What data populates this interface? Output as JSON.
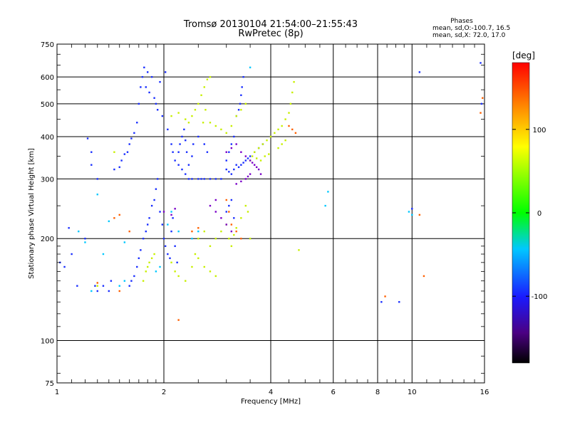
{
  "chart_data": {
    "type": "scatter",
    "title": "Tromsø 20130104 21:54:00–21:55:43",
    "subtitle": "RwPretec (8p)",
    "xlabel": "Frequency [MHz]",
    "ylabel": "Stationary phase Virtual Height [km]",
    "x_scale": "log",
    "y_scale": "log",
    "xlim": [
      1,
      16
    ],
    "ylim": [
      75,
      750
    ],
    "x_ticks": [
      1,
      2,
      4,
      6,
      8,
      10,
      16
    ],
    "y_ticks": [
      75,
      100,
      200,
      300,
      400,
      500,
      600,
      750
    ],
    "grid": true,
    "stats": {
      "heading": "Phases",
      "line1": "mean, sd,O:-100.7, 16.5",
      "line2": "mean, sd,X:  72.0, 17.0"
    },
    "colorbar": {
      "label": "[deg]",
      "range": [
        -180,
        180
      ],
      "ticks": [
        -100,
        0,
        100
      ],
      "tick_labels": [
        "-100",
        "0",
        "100"
      ]
    },
    "series": [
      {
        "points": [
          [
            1.02,
            170
          ],
          [
            1.05,
            165
          ],
          [
            1.08,
            215
          ],
          [
            1.1,
            180
          ],
          [
            1.14,
            145
          ],
          [
            1.2,
            200
          ],
          [
            1.25,
            330
          ],
          [
            1.3,
            300
          ],
          [
            1.35,
            145
          ],
          [
            1.4,
            140
          ],
          [
            1.42,
            150
          ],
          [
            1.45,
            320
          ],
          [
            1.5,
            325
          ],
          [
            1.52,
            340
          ],
          [
            1.55,
            355
          ],
          [
            1.58,
            360
          ],
          [
            1.6,
            380
          ],
          [
            1.62,
            395
          ],
          [
            1.65,
            410
          ],
          [
            1.68,
            440
          ],
          [
            1.7,
            500
          ],
          [
            1.72,
            560
          ],
          [
            1.74,
            600
          ],
          [
            1.76,
            640
          ],
          [
            1.78,
            560
          ],
          [
            1.8,
            620
          ],
          [
            1.82,
            540
          ],
          [
            1.85,
            600
          ],
          [
            1.88,
            520
          ],
          [
            1.9,
            500
          ],
          [
            1.92,
            480
          ],
          [
            1.95,
            580
          ],
          [
            1.98,
            460
          ],
          [
            2.02,
            620
          ],
          [
            2.05,
            420
          ],
          [
            2.1,
            380
          ],
          [
            2.12,
            360
          ],
          [
            2.15,
            340
          ],
          [
            2.2,
            330
          ],
          [
            2.25,
            320
          ],
          [
            2.3,
            310
          ],
          [
            2.35,
            300
          ],
          [
            2.4,
            300
          ],
          [
            2.5,
            300
          ],
          [
            2.55,
            300
          ],
          [
            2.6,
            300
          ],
          [
            2.7,
            300
          ],
          [
            2.8,
            300
          ],
          [
            2.9,
            300
          ],
          [
            1.6,
            145
          ],
          [
            1.62,
            150
          ],
          [
            1.65,
            155
          ],
          [
            1.68,
            165
          ],
          [
            1.7,
            175
          ],
          [
            1.72,
            185
          ],
          [
            1.75,
            200
          ],
          [
            1.78,
            210
          ],
          [
            1.8,
            220
          ],
          [
            1.82,
            230
          ],
          [
            1.85,
            250
          ],
          [
            1.88,
            260
          ],
          [
            1.9,
            280
          ],
          [
            1.92,
            300
          ],
          [
            1.95,
            240
          ],
          [
            1.98,
            220
          ],
          [
            2.0,
            200
          ],
          [
            2.02,
            190
          ],
          [
            2.05,
            180
          ],
          [
            2.08,
            175
          ],
          [
            2.1,
            210
          ],
          [
            2.12,
            230
          ],
          [
            2.15,
            190
          ],
          [
            2.18,
            170
          ],
          [
            2.2,
            360
          ],
          [
            2.22,
            380
          ],
          [
            2.25,
            400
          ],
          [
            2.28,
            420
          ],
          [
            2.3,
            390
          ],
          [
            2.32,
            360
          ],
          [
            2.35,
            330
          ],
          [
            2.4,
            350
          ],
          [
            2.42,
            380
          ],
          [
            2.5,
            400
          ],
          [
            2.6,
            380
          ],
          [
            2.65,
            360
          ],
          [
            3.0,
            240
          ],
          [
            3.05,
            250
          ],
          [
            3.1,
            260
          ],
          [
            3.15,
            230
          ],
          [
            3.2,
            460
          ],
          [
            3.25,
            480
          ],
          [
            3.28,
            500
          ],
          [
            3.3,
            530
          ],
          [
            3.32,
            560
          ],
          [
            3.35,
            600
          ],
          [
            3.0,
            320
          ],
          [
            3.05,
            315
          ],
          [
            3.1,
            310
          ],
          [
            3.15,
            320
          ],
          [
            3.2,
            330
          ],
          [
            3.25,
            325
          ],
          [
            3.3,
            330
          ],
          [
            3.35,
            335
          ],
          [
            3.4,
            340
          ],
          [
            3.45,
            345
          ],
          [
            3.5,
            350
          ],
          [
            3.6,
            360
          ],
          [
            3.7,
            370
          ],
          [
            3.8,
            380
          ],
          [
            3.0,
            340
          ],
          [
            3.05,
            360
          ],
          [
            3.1,
            380
          ],
          [
            3.15,
            400
          ],
          [
            8.2,
            130
          ],
          [
            9.2,
            130
          ],
          [
            10.5,
            620
          ],
          [
            10.0,
            245
          ],
          [
            15.6,
            660
          ],
          [
            15.7,
            500
          ],
          [
            1.3,
            140
          ],
          [
            1.28,
            145
          ],
          [
            1.25,
            360
          ],
          [
            1.22,
            395
          ]
        ]
      },
      {
        "points": [
          [
            2.1,
            460
          ],
          [
            2.2,
            470
          ],
          [
            2.3,
            450
          ],
          [
            2.35,
            440
          ],
          [
            2.4,
            460
          ],
          [
            2.45,
            480
          ],
          [
            2.5,
            500
          ],
          [
            2.55,
            530
          ],
          [
            2.6,
            560
          ],
          [
            2.65,
            590
          ],
          [
            2.7,
            600
          ],
          [
            2.62,
            480
          ],
          [
            2.58,
            440
          ],
          [
            2.7,
            440
          ],
          [
            2.8,
            430
          ],
          [
            2.9,
            420
          ],
          [
            3.0,
            410
          ],
          [
            3.1,
            430
          ],
          [
            3.2,
            460
          ],
          [
            3.3,
            480
          ],
          [
            3.4,
            500
          ],
          [
            3.6,
            360
          ],
          [
            3.7,
            370
          ],
          [
            3.8,
            380
          ],
          [
            3.9,
            390
          ],
          [
            4.0,
            400
          ],
          [
            4.1,
            410
          ],
          [
            4.2,
            420
          ],
          [
            4.3,
            430
          ],
          [
            4.4,
            450
          ],
          [
            4.5,
            470
          ],
          [
            4.55,
            500
          ],
          [
            4.6,
            540
          ],
          [
            4.65,
            580
          ],
          [
            4.2,
            370
          ],
          [
            4.3,
            380
          ],
          [
            4.4,
            390
          ],
          [
            2.1,
            170
          ],
          [
            2.15,
            160
          ],
          [
            2.2,
            155
          ],
          [
            2.3,
            150
          ],
          [
            2.4,
            165
          ],
          [
            2.45,
            180
          ],
          [
            2.5,
            175
          ],
          [
            2.6,
            165
          ],
          [
            2.7,
            160
          ],
          [
            2.8,
            155
          ],
          [
            2.5,
            200
          ],
          [
            2.6,
            210
          ],
          [
            2.7,
            190
          ],
          [
            2.8,
            200
          ],
          [
            2.9,
            210
          ],
          [
            3.0,
            220
          ],
          [
            3.05,
            200
          ],
          [
            3.1,
            190
          ],
          [
            3.15,
            205
          ],
          [
            3.2,
            215
          ],
          [
            3.3,
            230
          ],
          [
            3.4,
            250
          ],
          [
            3.45,
            240
          ],
          [
            3.5,
            200
          ],
          [
            1.75,
            150
          ],
          [
            1.78,
            160
          ],
          [
            1.8,
            165
          ],
          [
            1.82,
            170
          ],
          [
            1.85,
            175
          ],
          [
            1.88,
            180
          ],
          [
            1.3,
            145
          ],
          [
            4.8,
            185
          ],
          [
            3.5,
            340
          ],
          [
            3.55,
            350
          ],
          [
            3.65,
            345
          ],
          [
            3.75,
            340
          ],
          [
            3.85,
            350
          ],
          [
            3.95,
            355
          ],
          [
            1.45,
            360
          ]
        ]
      },
      {
        "points": [
          [
            1.15,
            210
          ],
          [
            1.2,
            195
          ],
          [
            1.25,
            140
          ],
          [
            1.35,
            180
          ],
          [
            1.4,
            225
          ],
          [
            1.55,
            195
          ],
          [
            2.05,
            220
          ],
          [
            2.1,
            240
          ],
          [
            2.2,
            210
          ],
          [
            2.4,
            200
          ],
          [
            2.5,
            210
          ],
          [
            1.5,
            145
          ],
          [
            1.55,
            150
          ],
          [
            1.9,
            160
          ],
          [
            1.95,
            165
          ],
          [
            5.8,
            275
          ],
          [
            5.7,
            250
          ],
          [
            10.0,
            235
          ],
          [
            9.8,
            240
          ],
          [
            3.5,
            640
          ],
          [
            1.3,
            270
          ]
        ]
      },
      {
        "points": [
          [
            3.0,
            260
          ],
          [
            3.05,
            240
          ],
          [
            3.1,
            220
          ],
          [
            3.2,
            210
          ],
          [
            3.3,
            200
          ],
          [
            4.5,
            430
          ],
          [
            4.6,
            420
          ],
          [
            4.7,
            410
          ],
          [
            2.4,
            210
          ],
          [
            2.5,
            215
          ],
          [
            1.45,
            230
          ],
          [
            1.5,
            235
          ],
          [
            1.3,
            148
          ],
          [
            10.5,
            235
          ],
          [
            15.6,
            470
          ],
          [
            2.2,
            115
          ],
          [
            1.5,
            140
          ],
          [
            8.4,
            135
          ],
          [
            10.8,
            155
          ],
          [
            1.6,
            210
          ],
          [
            15.8,
            520
          ]
        ]
      },
      {
        "points": [
          [
            2.8,
            240
          ],
          [
            2.9,
            230
          ],
          [
            3.0,
            220
          ],
          [
            3.1,
            210
          ],
          [
            3.0,
            360
          ],
          [
            3.1,
            370
          ],
          [
            3.2,
            380
          ],
          [
            3.3,
            360
          ],
          [
            3.4,
            350
          ],
          [
            3.5,
            340
          ],
          [
            3.55,
            335
          ],
          [
            3.6,
            330
          ],
          [
            3.65,
            325
          ],
          [
            3.7,
            320
          ],
          [
            3.75,
            310
          ],
          [
            2.7,
            250
          ],
          [
            2.8,
            260
          ],
          [
            3.2,
            290
          ],
          [
            3.3,
            295
          ],
          [
            3.4,
            300
          ],
          [
            3.45,
            305
          ],
          [
            3.5,
            310
          ],
          [
            2.0,
            240
          ],
          [
            2.1,
            235
          ],
          [
            2.15,
            245
          ]
        ]
      }
    ]
  }
}
